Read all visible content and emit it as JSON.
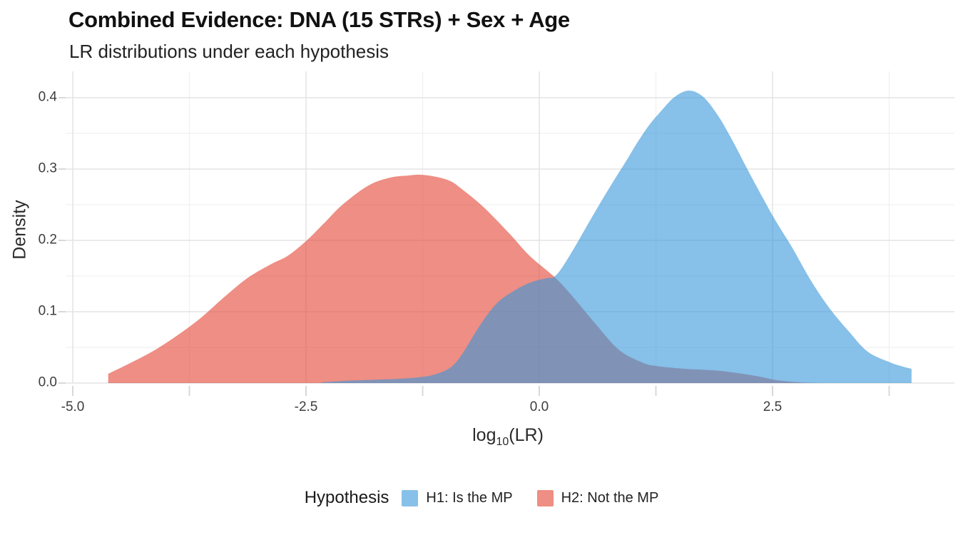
{
  "header": {
    "title": "Combined Evidence: DNA (15 STRs) + Sex + Age",
    "subtitle": "LR distributions under each hypothesis"
  },
  "axes": {
    "x_label_pre": "log",
    "x_label_sub": "10",
    "x_label_post": "(LR)",
    "y_label": "Density"
  },
  "legend": {
    "title": "Hypothesis",
    "items": [
      {
        "label": "H1: Is the MP",
        "color": "#3796D9"
      },
      {
        "label": "H2: Not the MP",
        "color": "#E34332"
      }
    ]
  },
  "colors": {
    "h1_fill": "#3796D9",
    "h2_fill": "#E34332",
    "fill_alpha": 0.6,
    "grid_major": "#E3E3E3",
    "grid_minor": "#F0F0F0",
    "axis_tick": "#D8D8D8",
    "title_text": "#111111",
    "subtitle_text": "#222222",
    "tick_text": "#3D3D3D",
    "axis_title_text": "#2B2B2B"
  },
  "chart_data": {
    "type": "area",
    "title": "Combined Evidence: DNA (15 STRs) + Sex + Age",
    "subtitle": "LR distributions under each hypothesis",
    "xlabel": "log10(LR)",
    "ylabel": "Density",
    "xlim": [
      -5.08,
      4.45
    ],
    "ylim": [
      0,
      0.437
    ],
    "grid": true,
    "legend_position": "bottom",
    "legend_title": "Hypothesis",
    "x_ticks": [
      {
        "value": -5.0,
        "label": "-5.0"
      },
      {
        "value": -2.5,
        "label": "-2.5"
      },
      {
        "value": 0.0,
        "label": "0.0"
      },
      {
        "value": 2.5,
        "label": "2.5"
      }
    ],
    "x_minor_ticks": [
      -3.75,
      -1.25,
      1.25,
      3.75
    ],
    "y_ticks": [
      {
        "value": 0.0,
        "label": "0.0"
      },
      {
        "value": 0.1,
        "label": "0.1"
      },
      {
        "value": 0.2,
        "label": "0.2"
      },
      {
        "value": 0.3,
        "label": "0.3"
      },
      {
        "value": 0.4,
        "label": "0.4"
      }
    ],
    "y_minor_ticks": [
      0.05,
      0.15,
      0.25,
      0.35
    ],
    "series": [
      {
        "name": "H1: Is the MP",
        "hypothesis": "H1",
        "color": "#3796D9",
        "peak": {
          "x": 1.6,
          "density": 0.41
        },
        "points": [
          [
            -2.34,
            0.001
          ],
          [
            -2.1,
            0.003
          ],
          [
            -1.9,
            0.004
          ],
          [
            -1.7,
            0.005
          ],
          [
            -1.5,
            0.006
          ],
          [
            -1.3,
            0.008
          ],
          [
            -1.15,
            0.011
          ],
          [
            -1.0,
            0.018
          ],
          [
            -0.9,
            0.028
          ],
          [
            -0.8,
            0.046
          ],
          [
            -0.68,
            0.072
          ],
          [
            -0.55,
            0.097
          ],
          [
            -0.43,
            0.115
          ],
          [
            -0.3,
            0.127
          ],
          [
            -0.18,
            0.136
          ],
          [
            -0.05,
            0.143
          ],
          [
            0.08,
            0.147
          ],
          [
            0.16,
            0.149
          ],
          [
            0.25,
            0.163
          ],
          [
            0.4,
            0.195
          ],
          [
            0.54,
            0.227
          ],
          [
            0.67,
            0.256
          ],
          [
            0.8,
            0.284
          ],
          [
            0.93,
            0.311
          ],
          [
            1.05,
            0.337
          ],
          [
            1.18,
            0.362
          ],
          [
            1.31,
            0.382
          ],
          [
            1.45,
            0.401
          ],
          [
            1.6,
            0.41
          ],
          [
            1.75,
            0.402
          ],
          [
            1.9,
            0.378
          ],
          [
            2.05,
            0.345
          ],
          [
            2.25,
            0.295
          ],
          [
            2.5,
            0.235
          ],
          [
            2.71,
            0.19
          ],
          [
            2.91,
            0.144
          ],
          [
            3.11,
            0.105
          ],
          [
            3.32,
            0.072
          ],
          [
            3.52,
            0.044
          ],
          [
            3.76,
            0.029
          ],
          [
            3.9,
            0.023
          ],
          [
            3.99,
            0.02
          ]
        ]
      },
      {
        "name": "H2: Not the MP",
        "hypothesis": "H2",
        "color": "#E34332",
        "peak": {
          "x": -1.27,
          "density": 0.292
        },
        "points": [
          [
            -4.62,
            0.013
          ],
          [
            -4.4,
            0.027
          ],
          [
            -4.15,
            0.044
          ],
          [
            -3.9,
            0.065
          ],
          [
            -3.64,
            0.09
          ],
          [
            -3.39,
            0.119
          ],
          [
            -3.13,
            0.147
          ],
          [
            -2.87,
            0.167
          ],
          [
            -2.7,
            0.178
          ],
          [
            -2.5,
            0.199
          ],
          [
            -2.3,
            0.225
          ],
          [
            -2.11,
            0.25
          ],
          [
            -1.83,
            0.277
          ],
          [
            -1.6,
            0.288
          ],
          [
            -1.4,
            0.291
          ],
          [
            -1.27,
            0.292
          ],
          [
            -1.1,
            0.289
          ],
          [
            -0.95,
            0.283
          ],
          [
            -0.83,
            0.272
          ],
          [
            -0.6,
            0.247
          ],
          [
            -0.33,
            0.211
          ],
          [
            -0.1,
            0.178
          ],
          [
            0.16,
            0.149
          ],
          [
            0.34,
            0.124
          ],
          [
            0.59,
            0.085
          ],
          [
            0.85,
            0.047
          ],
          [
            1.1,
            0.029
          ],
          [
            1.25,
            0.024
          ],
          [
            1.56,
            0.02
          ],
          [
            1.94,
            0.017
          ],
          [
            2.32,
            0.01
          ],
          [
            2.55,
            0.004
          ],
          [
            2.8,
            0.001
          ],
          [
            3.0,
            0.0
          ]
        ]
      }
    ]
  }
}
